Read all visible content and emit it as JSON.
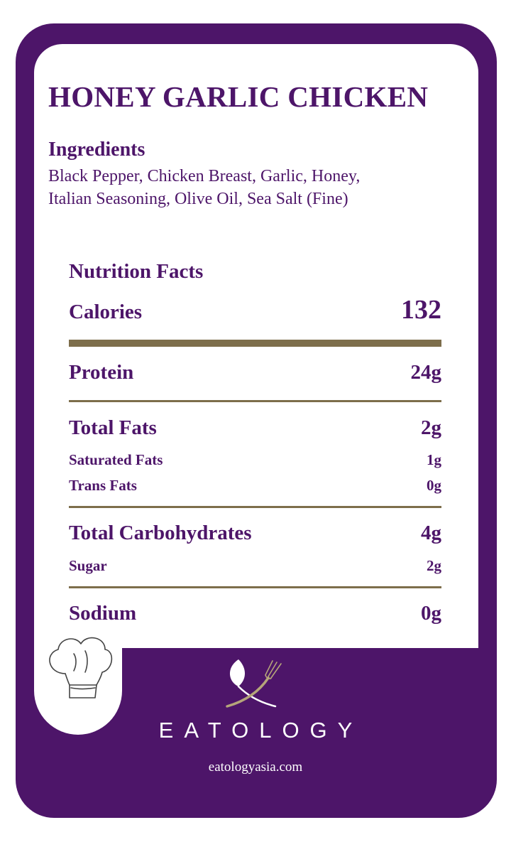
{
  "title": "HONEY GARLIC CHICKEN",
  "ingredients": {
    "heading": "Ingredients",
    "line1": "Black Pepper, Chicken Breast, Garlic, Honey,",
    "line2": "Italian Seasoning, Olive Oil, Sea Salt (Fine)"
  },
  "nutrition": {
    "heading": "Nutrition Facts",
    "calories": {
      "label": "Calories",
      "value": "132"
    },
    "protein": {
      "label": "Protein",
      "value": "24g"
    },
    "total_fats": {
      "label": "Total Fats",
      "value": "2g"
    },
    "saturated_fats": {
      "label": "Saturated Fats",
      "value": "1g"
    },
    "trans_fats": {
      "label": "Trans Fats",
      "value": "0g"
    },
    "total_carbs": {
      "label": "Total Carbohydrates",
      "value": "4g"
    },
    "sugar": {
      "label": "Sugar",
      "value": "2g"
    },
    "sodium": {
      "label": "Sodium",
      "value": "0g"
    }
  },
  "brand": {
    "name": "EATOLOGY",
    "url": "eatologyasia.com"
  },
  "colors": {
    "primary": "#4d1569",
    "rule": "#7d6e4b",
    "background": "#ffffff"
  },
  "icons": [
    "chef-hat-icon",
    "leaf-fork-logo-icon"
  ]
}
